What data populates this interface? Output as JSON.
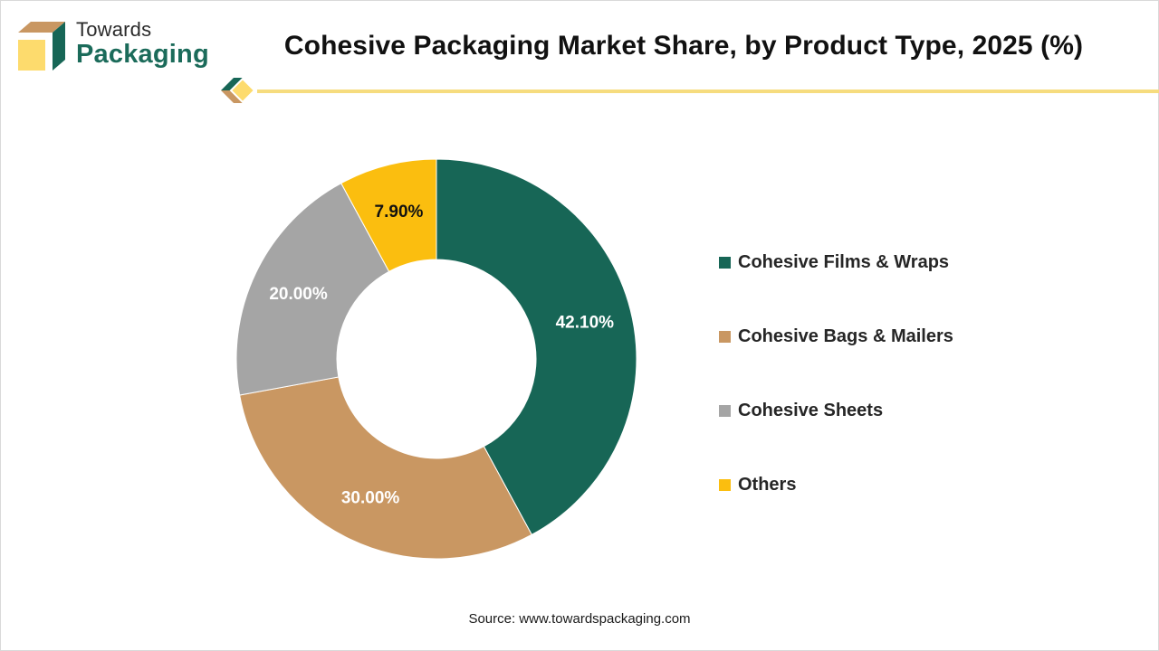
{
  "brand": {
    "line1": "Towards",
    "line2": "Packaging"
  },
  "chart_data": {
    "type": "pie",
    "variant": "donut",
    "title": "Cohesive Packaging Market Share, by Product Type, 2025 (%)",
    "categories": [
      "Cohesive Films & Wraps",
      "Cohesive Bags & Mailers",
      "Cohesive Sheets",
      "Others"
    ],
    "values": [
      42.1,
      30.0,
      20.0,
      7.9
    ],
    "labels": [
      "42.10%",
      "30.00%",
      "20.00%",
      "7.90%"
    ],
    "colors": [
      "#176656",
      "#c99762",
      "#a5a5a5",
      "#fbbe0f"
    ],
    "label_colors": [
      "#ffffff",
      "#ffffff",
      "#ffffff",
      "#111111"
    ],
    "start": "12 o'clock",
    "direction": "clockwise",
    "legend_position": "right"
  },
  "source": "Source: www.towardspackaging.com"
}
